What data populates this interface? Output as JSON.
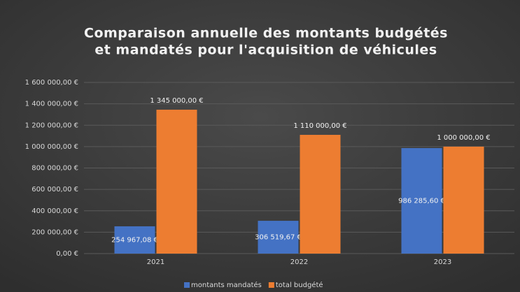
{
  "chart_data": {
    "type": "bar",
    "title": [
      "Comparaison annuelle des montants budgétés",
      "et mandatés pour l'acquisition de véhicules"
    ],
    "categories": [
      "2021",
      "2022",
      "2023"
    ],
    "series": [
      {
        "name": "montants mandatés",
        "color": "#4472c4",
        "values": [
          254967.08,
          306519.67,
          986285.6
        ],
        "value_labels": [
          "254 967,08 €",
          "306 519,67 €",
          "986 285,60 €"
        ]
      },
      {
        "name": "total budgété",
        "color": "#ed7d31",
        "values": [
          1345000,
          1110000,
          1000000
        ],
        "value_labels": [
          "1 345 000,00 €",
          "1 110 000,00 €",
          "1 000 000,00 €"
        ]
      }
    ],
    "ylim": [
      0,
      1600000
    ],
    "yticks": [
      {
        "value": 0,
        "label": "0,00 €"
      },
      {
        "value": 200000,
        "label": "200 000,00 €"
      },
      {
        "value": 400000,
        "label": "400 000,00 €"
      },
      {
        "value": 600000,
        "label": "600 000,00 €"
      },
      {
        "value": 800000,
        "label": "800 000,00 €"
      },
      {
        "value": 1000000,
        "label": "1 000 000,00 €"
      },
      {
        "value": 1200000,
        "label": "1 200 000,00 €"
      },
      {
        "value": 1400000,
        "label": "1 400 000,00 €"
      },
      {
        "value": 1600000,
        "label": "1 600 000,00 €"
      }
    ],
    "grid": true
  }
}
